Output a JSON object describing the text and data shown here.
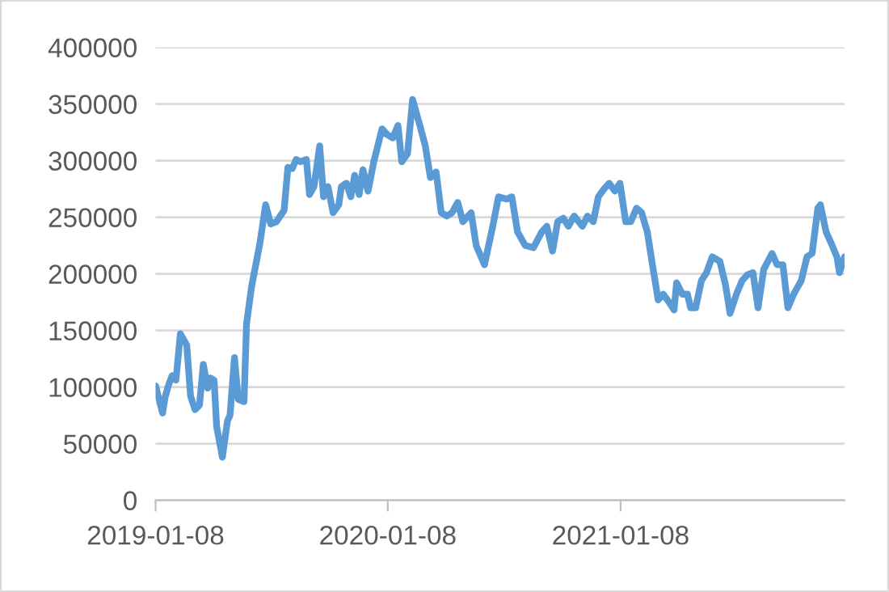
{
  "chart_data": {
    "type": "line",
    "x": [
      "2019-01-08",
      "2019-01-19",
      "2019-01-23",
      "2019-01-28",
      "2019-02-03",
      "2019-02-09",
      "2019-02-16",
      "2019-02-26",
      "2019-03-04",
      "2019-03-11",
      "2019-03-18",
      "2019-03-24",
      "2019-03-31",
      "2019-04-04",
      "2019-04-10",
      "2019-04-14",
      "2019-04-23",
      "2019-05-01",
      "2019-05-05",
      "2019-05-12",
      "2019-05-18",
      "2019-05-27",
      "2019-05-31",
      "2019-06-08",
      "2019-06-21",
      "2019-06-30",
      "2019-07-08",
      "2019-07-17",
      "2019-07-29",
      "2019-08-04",
      "2019-08-11",
      "2019-08-17",
      "2019-08-24",
      "2019-09-02",
      "2019-09-07",
      "2019-09-14",
      "2019-09-23",
      "2019-09-29",
      "2019-10-06",
      "2019-10-14",
      "2019-10-23",
      "2019-10-27",
      "2019-11-04",
      "2019-11-11",
      "2019-11-17",
      "2019-11-24",
      "2019-11-30",
      "2019-12-08",
      "2019-12-17",
      "2019-12-30",
      "2020-01-07",
      "2020-01-16",
      "2020-01-24",
      "2020-01-30",
      "2020-02-08",
      "2020-02-16",
      "2020-02-27",
      "2020-03-07",
      "2020-03-15",
      "2020-03-24",
      "2020-04-01",
      "2020-04-10",
      "2020-04-18",
      "2020-04-27",
      "2020-05-05",
      "2020-05-18",
      "2020-05-26",
      "2020-06-08",
      "2020-06-21",
      "2020-06-30",
      "2020-07-13",
      "2020-07-21",
      "2020-07-30",
      "2020-08-11",
      "2020-08-24",
      "2020-09-06",
      "2020-09-14",
      "2020-09-23",
      "2020-10-01",
      "2020-10-10",
      "2020-10-18",
      "2020-10-27",
      "2020-11-09",
      "2020-11-17",
      "2020-11-26",
      "2020-12-04",
      "2020-12-13",
      "2020-12-21",
      "2020-12-30",
      "2021-01-07",
      "2021-01-16",
      "2021-01-24",
      "2021-02-02",
      "2021-02-10",
      "2021-02-19",
      "2021-02-27",
      "2021-03-08",
      "2021-03-16",
      "2021-03-25",
      "2021-04-02",
      "2021-04-06",
      "2021-04-15",
      "2021-04-23",
      "2021-04-28",
      "2021-05-06",
      "2021-05-15",
      "2021-05-23",
      "2021-06-01",
      "2021-06-13",
      "2021-06-22",
      "2021-06-29",
      "2021-07-09",
      "2021-07-18",
      "2021-07-26",
      "2021-08-04",
      "2021-08-12",
      "2021-08-21",
      "2021-09-03",
      "2021-09-11",
      "2021-09-20",
      "2021-09-28",
      "2021-10-07",
      "2021-10-19",
      "2021-10-28",
      "2021-11-05",
      "2021-11-14",
      "2021-11-18",
      "2021-11-27",
      "2021-12-05",
      "2021-12-14",
      "2021-12-18",
      "2021-12-26"
    ],
    "series": [
      {
        "color": "#5b9bd5",
        "values": [
          101000,
          77000,
          91000,
          101000,
          110000,
          106000,
          147000,
          137000,
          92000,
          80000,
          84000,
          120000,
          99000,
          108000,
          106000,
          65000,
          38000,
          70000,
          75000,
          126000,
          89000,
          87000,
          156000,
          189000,
          227000,
          261000,
          244000,
          246000,
          256000,
          294000,
          293000,
          301000,
          299000,
          301000,
          270000,
          277000,
          313000,
          268000,
          277000,
          254000,
          261000,
          277000,
          280000,
          268000,
          287000,
          270000,
          292000,
          273000,
          299000,
          328000,
          323000,
          320000,
          331000,
          299000,
          306000,
          354000,
          332000,
          313000,
          285000,
          290000,
          254000,
          251000,
          254000,
          263000,
          246000,
          254000,
          225000,
          208000,
          242000,
          268000,
          266000,
          268000,
          237000,
          225000,
          223000,
          237000,
          242000,
          220000,
          246000,
          249000,
          242000,
          251000,
          242000,
          251000,
          246000,
          268000,
          275000,
          280000,
          273000,
          280000,
          246000,
          246000,
          258000,
          254000,
          237000,
          208000,
          177000,
          182000,
          175000,
          168000,
          192000,
          182000,
          182000,
          170000,
          170000,
          194000,
          201000,
          215000,
          211000,
          190000,
          165000,
          182000,
          194000,
          199000,
          201000,
          170000,
          204000,
          218000,
          208000,
          208000,
          170000,
          182000,
          194000,
          215000,
          218000,
          258000,
          261000,
          237000,
          227000,
          215000,
          201000,
          215000
        ]
      }
    ],
    "xlim": [
      "2019-01-08",
      "2021-12-26"
    ],
    "xticks": [
      "2019-01-08",
      "2020-01-08",
      "2021-01-08"
    ],
    "ylim": [
      0,
      400000
    ],
    "yticks": [
      0,
      50000,
      100000,
      150000,
      200000,
      250000,
      300000,
      350000,
      400000
    ],
    "grid": "y",
    "line_style": "solid",
    "marker": "none"
  }
}
